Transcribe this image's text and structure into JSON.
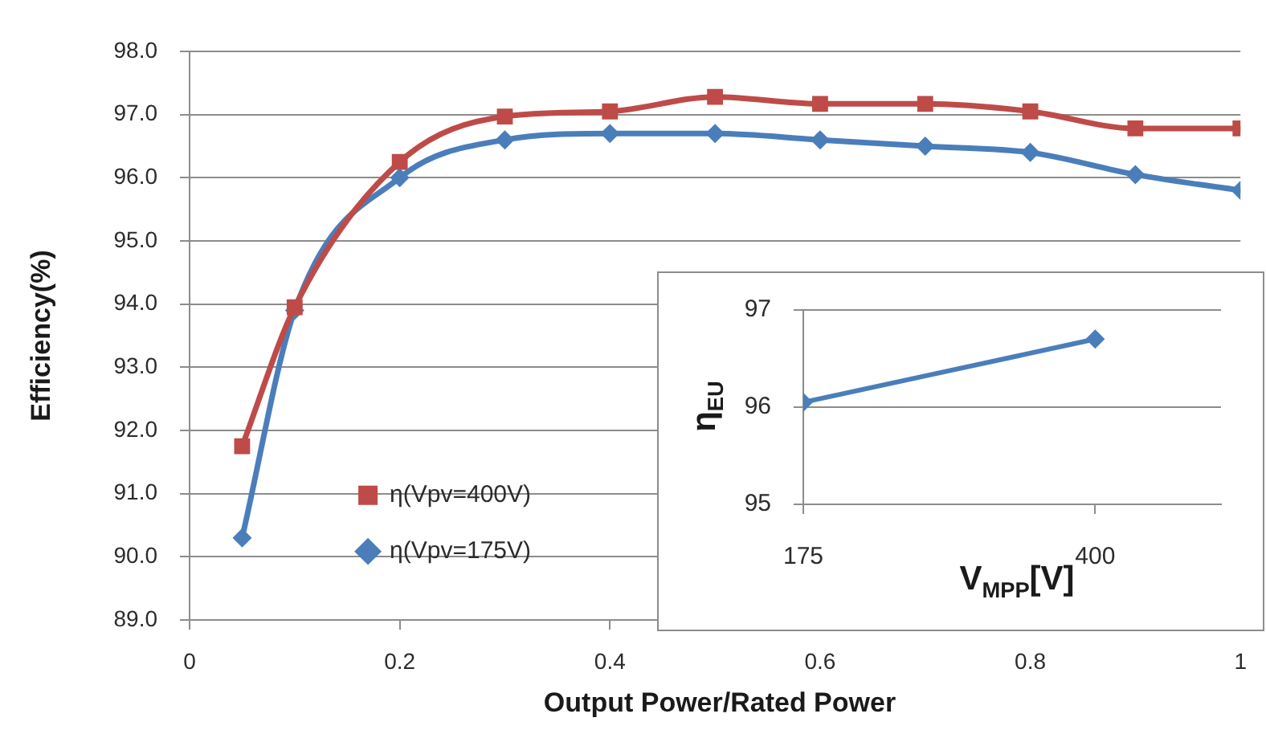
{
  "chart_data": [
    {
      "type": "line",
      "xlabel": "Output Power/Rated Power",
      "ylabel": "Efficiency(%)",
      "x": [
        0.05,
        0.1,
        0.2,
        0.3,
        0.4,
        0.5,
        0.6,
        0.7,
        0.8,
        0.9,
        1.0
      ],
      "xlim": [
        0,
        1
      ],
      "xticks": [
        0,
        0.2,
        0.4,
        0.6,
        0.8,
        1
      ],
      "ylim": [
        89,
        98
      ],
      "yticks": [
        {
          "value": 89,
          "label": "89.0"
        },
        {
          "value": 90,
          "label": "90.0"
        },
        {
          "value": 91,
          "label": "91.0"
        },
        {
          "value": 92,
          "label": "92.0"
        },
        {
          "value": 93,
          "label": "93.0"
        },
        {
          "value": 94,
          "label": "94.0"
        },
        {
          "value": 95,
          "label": "95.0"
        },
        {
          "value": 96,
          "label": "96.0"
        },
        {
          "value": 97,
          "label": "97.0"
        },
        {
          "value": 98,
          "label": "98.0"
        }
      ],
      "grid": "y",
      "legend": "left",
      "series": [
        {
          "name": "η(Vpv=175V)",
          "color": "#4a7ebb",
          "marker": "diamond",
          "values": [
            90.3,
            93.9,
            96.0,
            96.6,
            96.7,
            96.7,
            96.6,
            96.5,
            96.4,
            96.05,
            95.8
          ]
        },
        {
          "name": "η(Vpv=400V)",
          "color": "#be4b48",
          "marker": "square",
          "values": [
            91.75,
            93.95,
            96.25,
            96.97,
            97.05,
            97.28,
            97.17,
            97.17,
            97.05,
            96.78,
            96.78
          ]
        }
      ]
    },
    {
      "type": "line",
      "xlabel": "V$_{MPP}$[V]",
      "ylabel": "η$_{EU}$",
      "x": [
        175,
        400
      ],
      "xlim": [
        175,
        497
      ],
      "xticks": [
        175,
        400
      ],
      "ylim": [
        95,
        97
      ],
      "yticks": [
        95,
        96,
        97
      ],
      "grid": "y",
      "marker": "diamond",
      "color": "#4a7ebb",
      "values": [
        96.05,
        96.7
      ]
    }
  ]
}
